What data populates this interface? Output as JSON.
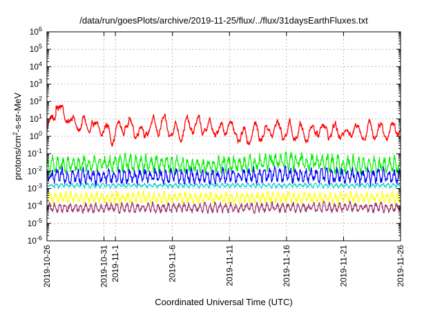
{
  "chart_data": {
    "type": "line",
    "title": "/data/run/goesPlots/archive/2019-11-25/flux/../flux/31daysEarthFluxes.txt",
    "xlabel": "Coordinated Universal Time (UTC)",
    "ylabel": {
      "prefix": "protons/cm",
      "sup": "2",
      "suffix": "-s-sr-MeV"
    },
    "x_range": [
      "2019-10-26",
      "2019-11-26"
    ],
    "y_scale": "log",
    "ylim": [
      1e-06,
      1000000.0
    ],
    "grid": true,
    "y_ticks": [
      {
        "value": 1e-06,
        "exp": "-6"
      },
      {
        "value": 1e-05,
        "exp": "-5"
      },
      {
        "value": 0.0001,
        "exp": "-4"
      },
      {
        "value": 0.001,
        "exp": "-3"
      },
      {
        "value": 0.01,
        "exp": "-2"
      },
      {
        "value": 0.1,
        "exp": "-1"
      },
      {
        "value": 1,
        "exp": "0"
      },
      {
        "value": 10,
        "exp": "1"
      },
      {
        "value": 100,
        "exp": "2"
      },
      {
        "value": 1000,
        "exp": "3"
      },
      {
        "value": 10000.0,
        "exp": "4"
      },
      {
        "value": 100000.0,
        "exp": "5"
      },
      {
        "value": 1000000.0,
        "exp": "6"
      }
    ],
    "x_ticks": [
      {
        "date": "2019-10-26",
        "label": "2019-10-26"
      },
      {
        "date": "2019-10-31",
        "label": "2019-10-31"
      },
      {
        "date": "2019-11-01",
        "label": "2019-11-1"
      },
      {
        "date": "2019-11-06",
        "label": "2019-11-6"
      },
      {
        "date": "2019-11-11",
        "label": "2019-11-11"
      },
      {
        "date": "2019-11-16",
        "label": "2019-11-16"
      },
      {
        "date": "2019-11-21",
        "label": "2019-11-21"
      },
      {
        "date": "2019-11-26",
        "label": "2019-11-26"
      }
    ],
    "series": [
      {
        "color": "#ff0000",
        "x": [
          "2019-10-26",
          "2019-10-27",
          "2019-10-28",
          "2019-10-29",
          "2019-10-30",
          "2019-10-31",
          "2019-11-01",
          "2019-11-02",
          "2019-11-03",
          "2019-11-04",
          "2019-11-05",
          "2019-11-06",
          "2019-11-07",
          "2019-11-08",
          "2019-11-09",
          "2019-11-10",
          "2019-11-11",
          "2019-11-12",
          "2019-11-13",
          "2019-11-14",
          "2019-11-15",
          "2019-11-16",
          "2019-11-17",
          "2019-11-18",
          "2019-11-19",
          "2019-11-20",
          "2019-11-21",
          "2019-11-22",
          "2019-11-23",
          "2019-11-24",
          "2019-11-25",
          "2019-11-26"
        ],
        "y": [
          2,
          60,
          8,
          4,
          3,
          2,
          1.5,
          6,
          2,
          3,
          4,
          2,
          3,
          4,
          3,
          2,
          5,
          0.5,
          2,
          1.5,
          3,
          2,
          1.5,
          2,
          3,
          2,
          1.5,
          3,
          2,
          3,
          2,
          5
        ],
        "min": 0.25,
        "max": 60
      },
      {
        "color": "#00ee00",
        "x": [
          "2019-10-26",
          "2019-11-02",
          "2019-11-09",
          "2019-11-16",
          "2019-11-23",
          "2019-11-26"
        ],
        "y": [
          0.02,
          0.03,
          0.02,
          0.04,
          0.02,
          0.02
        ],
        "min": 0.004,
        "max": 0.15
      },
      {
        "color": "#0000ff",
        "x": [
          "2019-10-26",
          "2019-11-02",
          "2019-11-09",
          "2019-11-16",
          "2019-11-23",
          "2019-11-26"
        ],
        "y": [
          0.005,
          0.005,
          0.005,
          0.006,
          0.005,
          0.005
        ],
        "min": 0.0008,
        "max": 0.02
      },
      {
        "color": "#00cccc",
        "x": [
          "2019-10-26",
          "2019-11-26"
        ],
        "y": [
          0.0015,
          0.0015
        ],
        "min": 0.0008,
        "max": 0.002
      },
      {
        "color": "#ffff00",
        "x": [
          "2019-10-26",
          "2019-11-26"
        ],
        "y": [
          0.0003,
          0.0003
        ],
        "min": 0.0001,
        "max": 0.001
      },
      {
        "color": "#993366",
        "x": [
          "2019-10-26",
          "2019-11-26"
        ],
        "y": [
          8e-05,
          8e-05
        ],
        "min": 2.5e-05,
        "max": 0.0002
      }
    ]
  }
}
